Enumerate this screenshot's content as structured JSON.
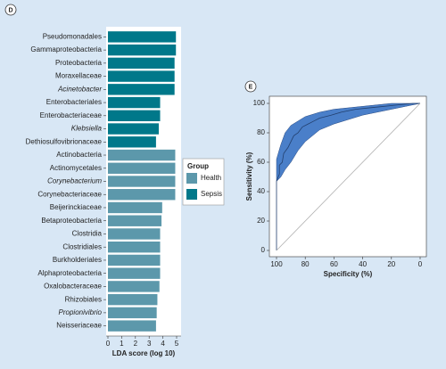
{
  "chart_data": [
    {
      "type": "bar",
      "orientation": "horizontal",
      "panel": "D",
      "categories": [
        "Pseudomonadales",
        "Gammaproteobacteria",
        "Proteobacteria",
        "Moraxellaceae",
        "Acinetobacter",
        "Enterobacteriales",
        "Enterobacteriaceae",
        "Klebsiella",
        "Dethiosulfovibrionaceae",
        "Actinobacteria",
        "Actinomycetales",
        "Corynebacterium",
        "Corynebacteriaceae",
        "Beijerinckiaceae",
        "Betaproteobacteria",
        "Clostridia",
        "Clostridiales",
        "Burkholderiales",
        "Alphaproteobacteria",
        "Oxalobacteraceae",
        "Rhizobiales",
        "Propionivibrio",
        "Neisseriaceae"
      ],
      "italic": [
        false,
        false,
        false,
        false,
        true,
        false,
        false,
        true,
        false,
        false,
        false,
        true,
        false,
        false,
        false,
        false,
        false,
        false,
        false,
        false,
        false,
        true,
        false
      ],
      "series": [
        {
          "name": "Health",
          "color": "#5c98ab",
          "values": [
            null,
            null,
            null,
            null,
            null,
            null,
            null,
            null,
            null,
            4.9,
            4.9,
            4.9,
            4.9,
            3.95,
            3.9,
            3.8,
            3.8,
            3.8,
            3.8,
            3.75,
            3.6,
            3.55,
            3.5
          ]
        },
        {
          "name": "Sepsis",
          "color": "#00788a",
          "values": [
            4.95,
            4.95,
            4.85,
            4.85,
            4.85,
            3.8,
            3.8,
            3.7,
            3.5,
            null,
            null,
            null,
            null,
            null,
            null,
            null,
            null,
            null,
            null,
            null,
            null,
            null,
            null
          ]
        }
      ],
      "xlim": [
        0,
        5
      ],
      "xticks": [
        0,
        1,
        2,
        3,
        4,
        5
      ],
      "xlabel": "LDA score (log 10)",
      "legend_title": "Group",
      "legend": "right"
    },
    {
      "type": "roc",
      "panel": "E",
      "xlim": [
        100,
        0
      ],
      "ylim": [
        0,
        100
      ],
      "xticks": [
        100,
        80,
        60,
        40,
        20,
        0
      ],
      "yticks": [
        0,
        20,
        40,
        60,
        80,
        100
      ],
      "xlabel": "Specificity (%)",
      "ylabel": "Sensitivity (%)",
      "band": {
        "color": "#4a7fc9",
        "x": [
          100,
          97,
          94,
          90,
          85,
          80,
          70,
          60,
          50,
          40,
          30,
          20,
          10,
          0
        ],
        "upper": [
          62,
          72,
          80,
          85,
          88,
          91,
          94,
          96,
          97,
          98,
          99,
          100,
          100,
          100
        ],
        "lower": [
          47,
          50,
          55,
          60,
          68,
          74,
          82,
          86,
          89,
          92,
          94,
          96,
          98,
          100
        ]
      },
      "series": [
        {
          "color": "#23406e",
          "x": [
            100,
            100,
            98,
            98,
            96,
            95,
            92,
            90,
            88,
            85,
            82,
            78,
            74,
            70,
            62,
            55,
            45,
            35,
            25,
            15,
            5,
            0
          ],
          "values": [
            0,
            47,
            52,
            58,
            60,
            66,
            70,
            74,
            78,
            80,
            84,
            86,
            88,
            90,
            92,
            94,
            96,
            97,
            98,
            99,
            100,
            100
          ]
        },
        {
          "color": "#b0b0b0",
          "x": [
            100,
            0
          ],
          "values": [
            0,
            100
          ]
        }
      ]
    }
  ]
}
